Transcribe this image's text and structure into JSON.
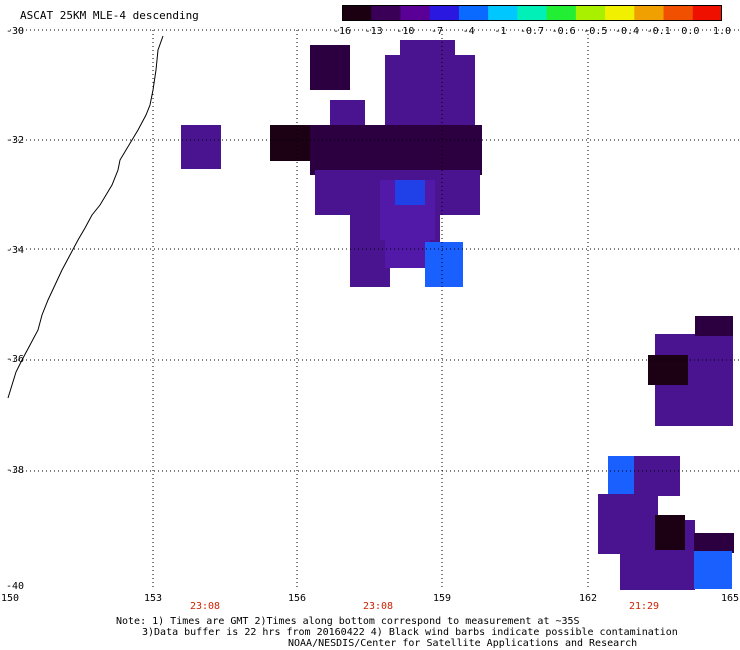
{
  "title": "ASCAT 25KM MLE-4 descending",
  "colorbar": {
    "labels": [
      "-16",
      "-13",
      "-10",
      "-7",
      "-4",
      "-1",
      "-0.7",
      "-0.6",
      "-0.5",
      "-0.4",
      "-0.1",
      "0.0",
      "1.0"
    ],
    "colors": [
      "#1a0010",
      "#3a0058",
      "#5a0096",
      "#2a18e0",
      "#0a6aff",
      "#00c8ff",
      "#00f0b8",
      "#22ee33",
      "#a8f000",
      "#f0f000",
      "#f0a000",
      "#f05000",
      "#f01000"
    ]
  },
  "axes": {
    "lat_labels": [
      "-30",
      "-32",
      "-34",
      "-36",
      "-38",
      "-40"
    ],
    "lon_labels": [
      "150",
      "153",
      "156",
      "159",
      "162",
      "165"
    ],
    "time_labels": [
      "23:08",
      "23:08",
      "21:29"
    ]
  },
  "notes": {
    "line1": "Note: 1) Times are GMT 2)Times along bottom correspond to measurement at ~35S",
    "line2": "3)Data buffer is 22 hrs from 20160422 4) Black wind barbs indicate possible contamination",
    "line3": "NOAA/NESDIS/Center for Satellite Applications and Research"
  },
  "colors": {
    "dark": "#1c0014",
    "deep_purple": "#2c0040",
    "purple": "#4a1490",
    "violet": "#5218a8",
    "blue": "#2040e8",
    "bright_blue": "#1a60ff",
    "coast": "#000000",
    "grid": "#000000"
  }
}
